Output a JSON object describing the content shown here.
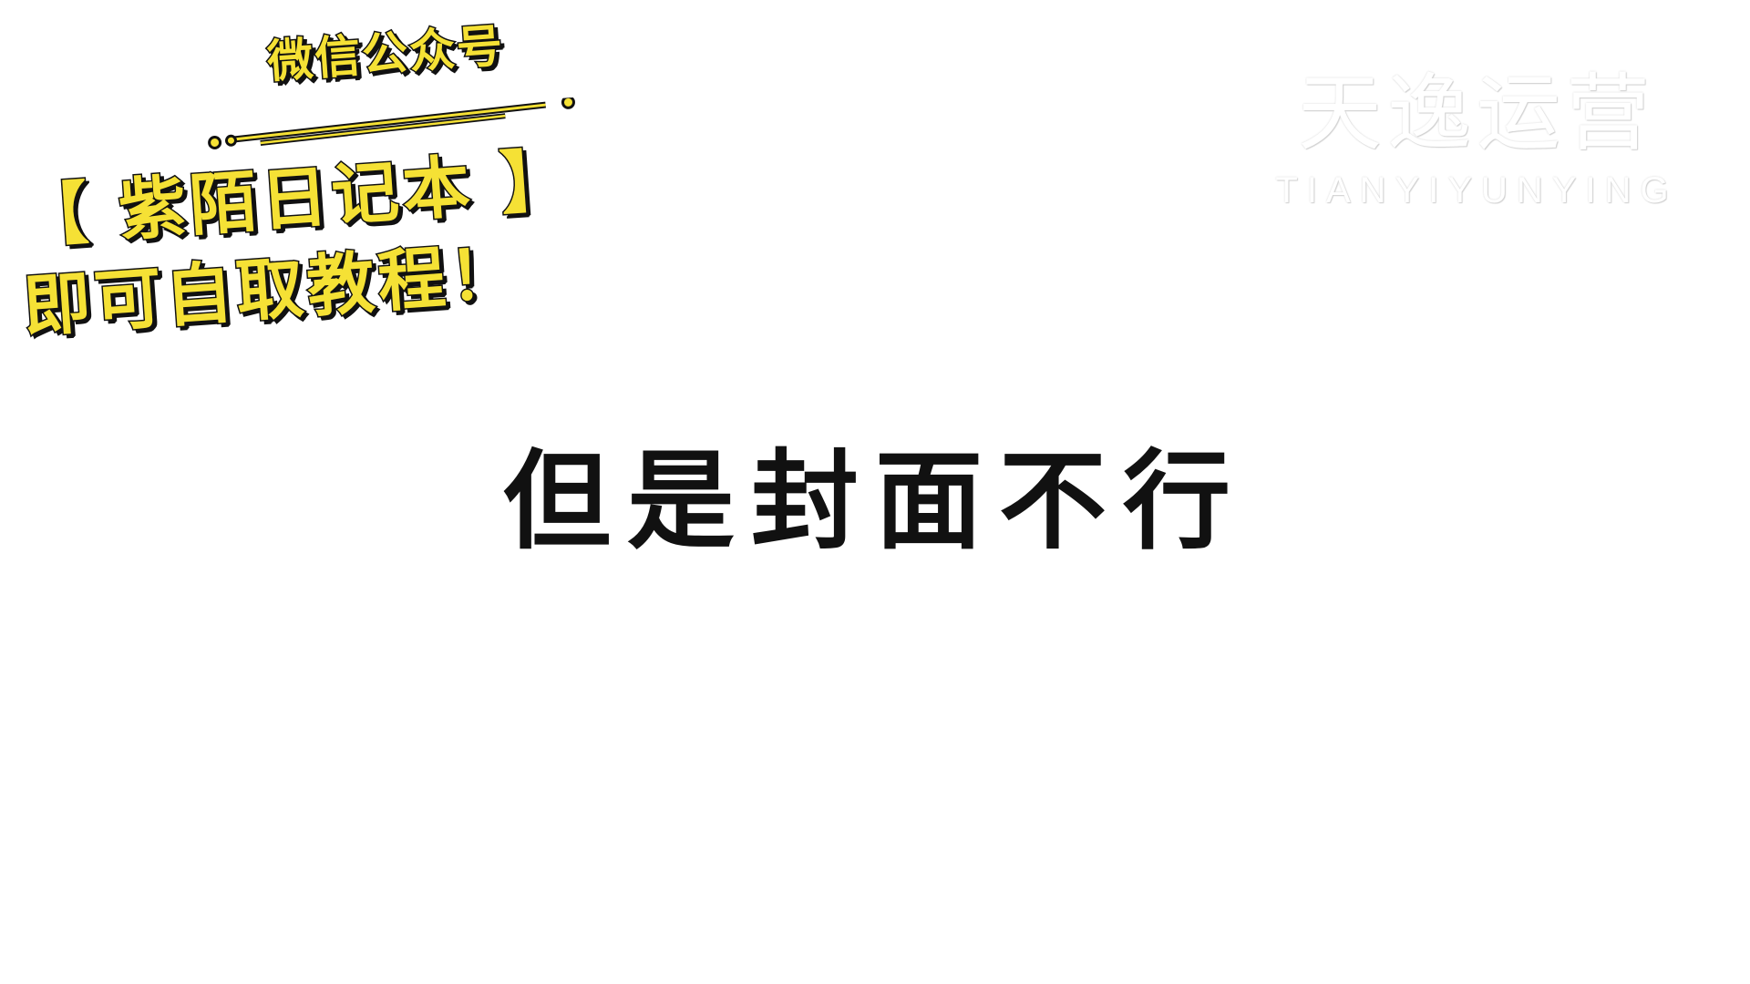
{
  "promo": {
    "line1": "微信公众号",
    "line2": "【 紫陌日记本 】",
    "line3": "即可自取教程！",
    "text_color": "#f5e135",
    "outline_color": "#111111"
  },
  "watermark": {
    "main": "天逸运营",
    "sub": "TIANYIYUNYING",
    "color": "#ffffff"
  },
  "subtitle": {
    "text": "但是封面不行",
    "color": "#111111"
  }
}
